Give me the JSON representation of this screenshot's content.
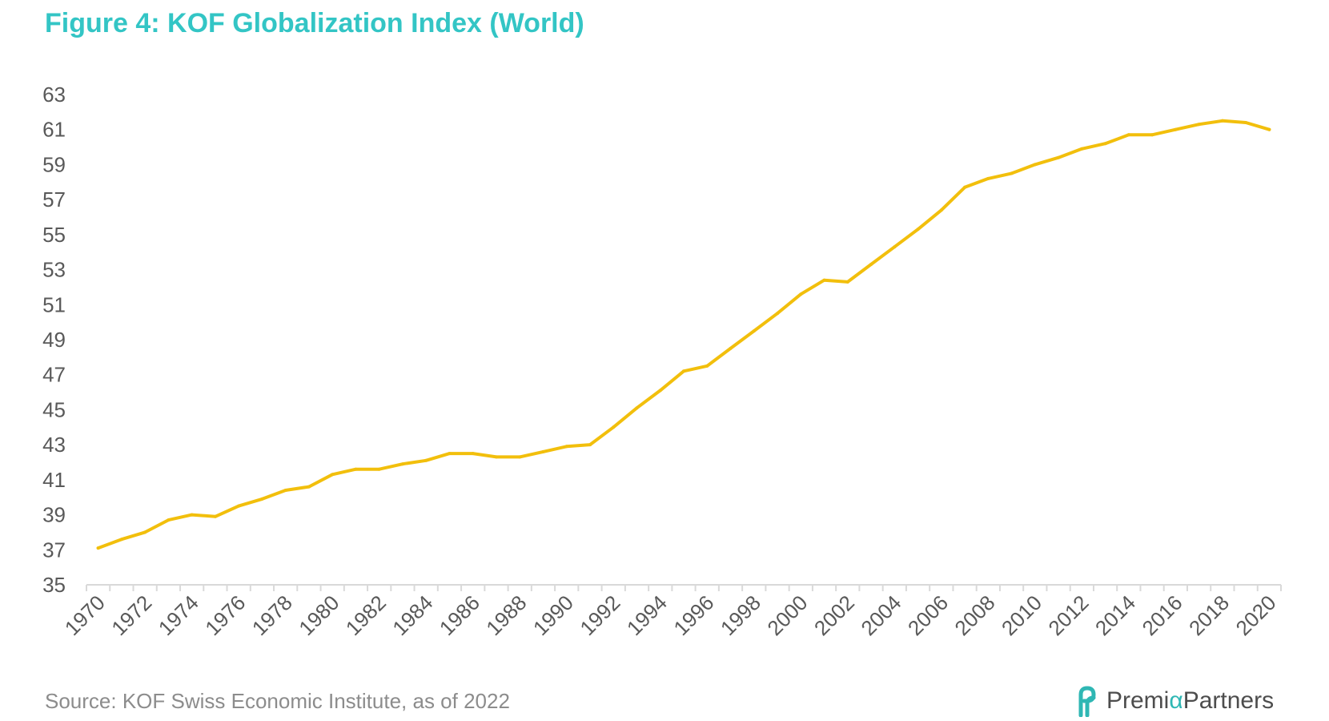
{
  "title": "Figure 4: KOF Globalization Index (World)",
  "source": "Source: KOF Swiss Economic Institute, as of 2022",
  "brand": {
    "part1": "Premi",
    "alpha": "α",
    "part2": "Partners",
    "logo_icon": "premia-logo-icon"
  },
  "colors": {
    "title": "#33c5c5",
    "line": "#f2bf0c",
    "axis": "#d9d9d9",
    "text": "#595959",
    "brand_accent": "#2fb7b4"
  },
  "chart_data": {
    "type": "line",
    "title": "Figure 4: KOF Globalization Index (World)",
    "xlabel": "",
    "ylabel": "",
    "ylim": [
      35,
      63
    ],
    "yticks": [
      35,
      37,
      39,
      41,
      43,
      45,
      47,
      49,
      51,
      53,
      55,
      57,
      59,
      61,
      63
    ],
    "xticks": [
      "1970",
      "1972",
      "1974",
      "1976",
      "1978",
      "1980",
      "1982",
      "1984",
      "1986",
      "1988",
      "1990",
      "1992",
      "1994",
      "1996",
      "1998",
      "2000",
      "2002",
      "2004",
      "2006",
      "2008",
      "2010",
      "2012",
      "2014",
      "2016",
      "2018",
      "2020"
    ],
    "grid": false,
    "legend": "none",
    "x": [
      1970,
      1971,
      1972,
      1973,
      1974,
      1975,
      1976,
      1977,
      1978,
      1979,
      1980,
      1981,
      1982,
      1983,
      1984,
      1985,
      1986,
      1987,
      1988,
      1989,
      1990,
      1991,
      1992,
      1993,
      1994,
      1995,
      1996,
      1997,
      1998,
      1999,
      2000,
      2001,
      2002,
      2003,
      2004,
      2005,
      2006,
      2007,
      2008,
      2009,
      2010,
      2011,
      2012,
      2013,
      2014,
      2015,
      2016,
      2017,
      2018,
      2019,
      2020
    ],
    "series": [
      {
        "values": [
          37.1,
          37.6,
          38.0,
          38.7,
          39.0,
          38.9,
          39.5,
          39.9,
          40.4,
          40.6,
          41.3,
          41.6,
          41.6,
          41.9,
          42.1,
          42.5,
          42.5,
          42.3,
          42.3,
          42.6,
          42.9,
          43.0,
          44.0,
          45.1,
          46.1,
          47.2,
          47.5,
          48.5,
          49.5,
          50.5,
          51.6,
          52.4,
          52.3,
          53.3,
          54.3,
          55.3,
          56.4,
          57.7,
          58.2,
          58.5,
          59.0,
          59.4,
          59.9,
          60.2,
          60.7,
          60.7,
          61.0,
          61.3,
          61.5,
          61.4,
          61.0
        ]
      }
    ]
  }
}
